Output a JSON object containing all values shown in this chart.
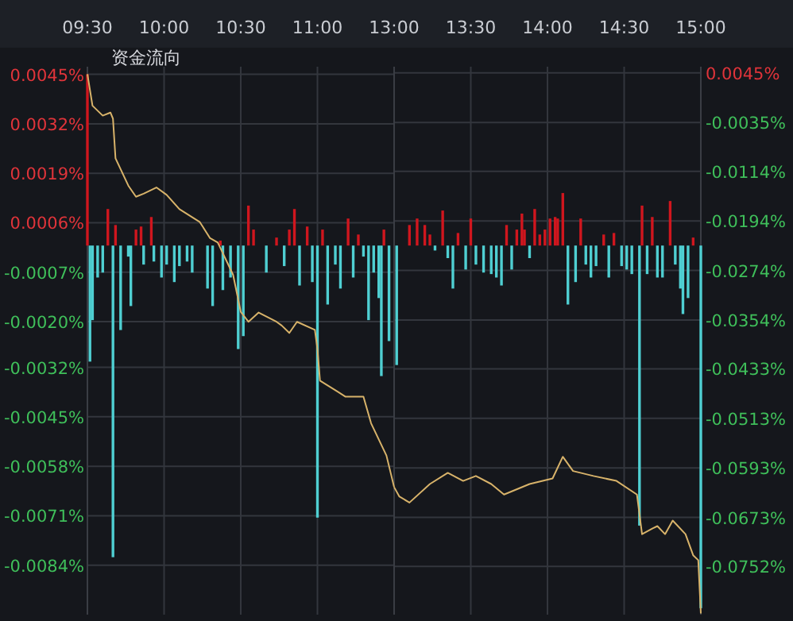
{
  "chart_data": [
    {
      "type": "bar",
      "title": "资金流向",
      "grid": true,
      "xlim": [
        9.5,
        11.5
      ],
      "xticks": [
        {
          "value": 9.5,
          "label": "09:30"
        },
        {
          "value": 10,
          "label": "10:00"
        },
        {
          "value": 10.5,
          "label": "10:30"
        },
        {
          "value": 11,
          "label": "11:00"
        }
      ],
      "ylim": [
        -0.0097,
        0.0047
      ],
      "yticks": [
        {
          "value": 0.0045,
          "label": "0.0045%"
        },
        {
          "value": 0.0032,
          "label": "0.0032%"
        },
        {
          "value": 0.0019,
          "label": "0.0019%"
        },
        {
          "value": 0.0006,
          "label": "0.0006%"
        },
        {
          "value": -0.0007,
          "label": "-0.0007%"
        },
        {
          "value": -0.002,
          "label": "-0.0020%"
        },
        {
          "value": -0.0032,
          "label": "-0.0032%"
        },
        {
          "value": -0.0045,
          "label": "-0.0045%"
        },
        {
          "value": -0.0058,
          "label": "-0.0058%"
        },
        {
          "value": -0.0071,
          "label": "-0.0071%"
        },
        {
          "value": -0.0084,
          "label": "-0.0084%"
        }
      ],
      "y2lim": [
        -0.083,
        0.0055
      ],
      "series": [
        {
          "x": [
            9.5,
            9.5167,
            9.5333,
            9.5667,
            9.6,
            9.6333,
            9.6667,
            9.6833,
            9.7167,
            9.7667,
            9.7833,
            9.8167,
            9.85,
            9.8667,
            9.9167,
            9.9333,
            9.9833,
            10.0167,
            10.0667,
            10.1,
            10.15,
            10.1833,
            10.2833,
            10.3167,
            10.3667,
            10.3833,
            10.4333,
            10.4833,
            10.5167,
            10.55,
            10.5833,
            10.6667,
            10.7333,
            10.7833,
            10.8167,
            10.85,
            10.8833,
            10.9333,
            10.9667,
            11,
            11.0333,
            11.0667,
            11.1167,
            11.15,
            11.2,
            11.2333,
            11.2667,
            11.3,
            11.3333,
            11.3667,
            11.4,
            11.4167,
            11.4333,
            11.4667
          ],
          "values": [
            0.0045,
            -0.00305,
            -0.00196,
            -0.00084,
            -0.00071,
            0.00096,
            -0.00819,
            0.00054,
            -0.00222,
            -0.00029,
            -0.00159,
            0.00042,
            0.0005,
            -0.0005,
            0.00075,
            -0.00042,
            -0.00084,
            -0.0005,
            -0.00096,
            -0.00054,
            -0.00042,
            -0.00071,
            -0.00113,
            -0.00159,
            0.00013,
            -0.00117,
            -0.00084,
            -0.00272,
            -0.00238,
            0.00105,
            0.00042,
            -0.00071,
            0.00021,
            -0.00054,
            0.00042,
            0.00096,
            -0.00105,
            0.0005,
            -0.00096,
            -0.00715,
            0.00042,
            -0.00155,
            -0.0005,
            -0.00113,
            0.00071,
            -0.00084,
            0.00029,
            -0.00029,
            -0.00196,
            -0.00071,
            -0.00138,
            -0.00343,
            0.00042,
            -0.00251
          ],
          "colors": [
            "#d0161e",
            "#4fcfd2",
            "#4fcfd2",
            "#4fcfd2",
            "#4fcfd2",
            "#d0161e",
            "#4fcfd2",
            "#d0161e",
            "#4fcfd2",
            "#4fcfd2",
            "#4fcfd2",
            "#d0161e",
            "#d0161e",
            "#4fcfd2",
            "#d0161e",
            "#4fcfd2",
            "#4fcfd2",
            "#4fcfd2",
            "#4fcfd2",
            "#4fcfd2",
            "#4fcfd2",
            "#4fcfd2",
            "#4fcfd2",
            "#4fcfd2",
            "#d0161e",
            "#4fcfd2",
            "#4fcfd2",
            "#4fcfd2",
            "#4fcfd2",
            "#d0161e",
            "#d0161e",
            "#4fcfd2",
            "#d0161e",
            "#4fcfd2",
            "#d0161e",
            "#d0161e",
            "#4fcfd2",
            "#d0161e",
            "#4fcfd2",
            "#4fcfd2",
            "#d0161e",
            "#4fcfd2",
            "#4fcfd2",
            "#4fcfd2",
            "#d0161e",
            "#4fcfd2",
            "#d0161e",
            "#4fcfd2",
            "#4fcfd2",
            "#4fcfd2",
            "#4fcfd2",
            "#4fcfd2",
            "#d0161e",
            "#4fcfd2"
          ]
        },
        {
          "type": "line",
          "axis": "y2",
          "color": "#d8b36a",
          "x": [
            9.5,
            9.5333,
            9.6,
            9.65,
            9.6667,
            9.6833,
            9.7667,
            9.8167,
            9.8667,
            9.95,
            10.0167,
            10.1,
            10.2333,
            10.3,
            10.35,
            10.45,
            10.5,
            10.55,
            10.6167,
            10.7333,
            10.7667,
            10.8167,
            10.8667,
            10.9833,
            11,
            11.0167,
            11.1333,
            11.1833,
            11.3,
            11.35,
            11.45,
            11.5
          ],
          "values": [
            0.0043,
            -0.0008,
            -0.0024,
            -0.0019,
            -0.0029,
            -0.0093,
            -0.0137,
            -0.0155,
            -0.015,
            -0.014,
            -0.0152,
            -0.0175,
            -0.0196,
            -0.0222,
            -0.0229,
            -0.0281,
            -0.0341,
            -0.0357,
            -0.0342,
            -0.0357,
            -0.0363,
            -0.0375,
            -0.0357,
            -0.037,
            -0.0401,
            -0.0452,
            -0.047,
            -0.0478,
            -0.0478,
            -0.0521,
            -0.0573,
            -0.0624
          ]
        }
      ]
    },
    {
      "type": "bar",
      "grid": true,
      "xlim": [
        13,
        15
      ],
      "xticks": [
        {
          "value": 13,
          "label": "13:00"
        },
        {
          "value": 13.5,
          "label": "13:30"
        },
        {
          "value": 14,
          "label": "14:00"
        },
        {
          "value": 14.5,
          "label": "14:30"
        },
        {
          "value": 15,
          "label": "15:00"
        }
      ],
      "ylim": [
        -0.0097,
        0.0047
      ],
      "y2lim": [
        -0.083,
        0.0055
      ],
      "y2ticks": [
        {
          "value": 0.0045,
          "label": "0.0045%"
        },
        {
          "value": -0.0035,
          "label": "-0.0035%"
        },
        {
          "value": -0.0114,
          "label": "-0.0114%"
        },
        {
          "value": -0.0194,
          "label": "-0.0194%"
        },
        {
          "value": -0.0274,
          "label": "-0.0274%"
        },
        {
          "value": -0.0354,
          "label": "-0.0354%"
        },
        {
          "value": -0.0433,
          "label": "-0.0433%"
        },
        {
          "value": -0.0513,
          "label": "-0.0513%"
        },
        {
          "value": -0.0593,
          "label": "-0.0593%"
        },
        {
          "value": -0.0673,
          "label": "-0.0673%"
        },
        {
          "value": -0.0752,
          "label": "-0.0752%"
        }
      ],
      "series": [
        {
          "x": [
            13.0167,
            13.1,
            13.15,
            13.2,
            13.2333,
            13.2667,
            13.3167,
            13.35,
            13.3833,
            13.4167,
            13.4667,
            13.5,
            13.5333,
            13.5833,
            13.6333,
            13.6667,
            13.7,
            13.7333,
            13.7667,
            13.8,
            13.8333,
            13.85,
            13.8833,
            13.9167,
            13.95,
            13.9833,
            14.0167,
            14.05,
            14.0667,
            14.1,
            14.1333,
            14.1833,
            14.2167,
            14.25,
            14.2833,
            14.3167,
            14.3667,
            14.4,
            14.4333,
            14.4833,
            14.5167,
            14.55,
            14.6,
            14.6167,
            14.65,
            14.6833,
            14.7167,
            14.75,
            14.8,
            14.8333,
            14.8667,
            14.8833,
            14.9167,
            14.95,
            15
          ],
          "values": [
            -0.00314,
            0.00054,
            0.00071,
            0.00054,
            0.00029,
            -0.00013,
            0.00092,
            -0.00033,
            -0.00113,
            0.00033,
            -0.00063,
            0.00071,
            -0.0005,
            -0.00071,
            -0.00075,
            -0.00084,
            -0.00105,
            0.00054,
            -0.00063,
            0.00042,
            0.00084,
            0.00042,
            -0.00033,
            0.00096,
            0.00029,
            0.00042,
            0.00071,
            0.00075,
            0.00071,
            0.00138,
            -0.00155,
            -0.00096,
            0.00071,
            -0.0005,
            -0.00084,
            -0.00054,
            0.00029,
            -0.00084,
            0.00033,
            -0.00054,
            -0.00063,
            -0.00075,
            -0.00736,
            0.00105,
            -0.00075,
            0.00075,
            -0.00084,
            -0.00084,
            0.00117,
            -0.0005,
            -0.00113,
            -0.0018,
            -0.00138,
            0.00021,
            -0.00953
          ],
          "colors": [
            "#4fcfd2",
            "#d0161e",
            "#d0161e",
            "#d0161e",
            "#d0161e",
            "#4fcfd2",
            "#d0161e",
            "#4fcfd2",
            "#4fcfd2",
            "#d0161e",
            "#4fcfd2",
            "#d0161e",
            "#4fcfd2",
            "#4fcfd2",
            "#4fcfd2",
            "#4fcfd2",
            "#4fcfd2",
            "#d0161e",
            "#4fcfd2",
            "#d0161e",
            "#d0161e",
            "#d0161e",
            "#4fcfd2",
            "#d0161e",
            "#d0161e",
            "#d0161e",
            "#d0161e",
            "#d0161e",
            "#d0161e",
            "#d0161e",
            "#4fcfd2",
            "#4fcfd2",
            "#d0161e",
            "#4fcfd2",
            "#4fcfd2",
            "#4fcfd2",
            "#d0161e",
            "#4fcfd2",
            "#d0161e",
            "#4fcfd2",
            "#4fcfd2",
            "#4fcfd2",
            "#4fcfd2",
            "#d0161e",
            "#4fcfd2",
            "#d0161e",
            "#4fcfd2",
            "#4fcfd2",
            "#d0161e",
            "#4fcfd2",
            "#4fcfd2",
            "#4fcfd2",
            "#4fcfd2",
            "#d0161e",
            "#4fcfd2"
          ]
        },
        {
          "type": "line",
          "axis": "y2",
          "color": "#d8b36a",
          "x": [
            13,
            13.0333,
            13.1,
            13.2333,
            13.35,
            13.45,
            13.5333,
            13.6333,
            13.7167,
            13.8833,
            14.0333,
            14.1,
            14.1667,
            14.3,
            14.45,
            14.5833,
            14.6167,
            14.6833,
            14.7167,
            14.7667,
            14.8167,
            14.9,
            14.95,
            14.9833,
            15
          ],
          "values": [
            -0.0624,
            -0.0639,
            -0.0649,
            -0.0619,
            -0.0601,
            -0.0614,
            -0.0606,
            -0.0619,
            -0.0636,
            -0.0619,
            -0.061,
            -0.0575,
            -0.0598,
            -0.0606,
            -0.0614,
            -0.0636,
            -0.07,
            -0.0691,
            -0.0687,
            -0.07,
            -0.0678,
            -0.07,
            -0.0734,
            -0.0742,
            -0.0828
          ]
        }
      ]
    }
  ]
}
